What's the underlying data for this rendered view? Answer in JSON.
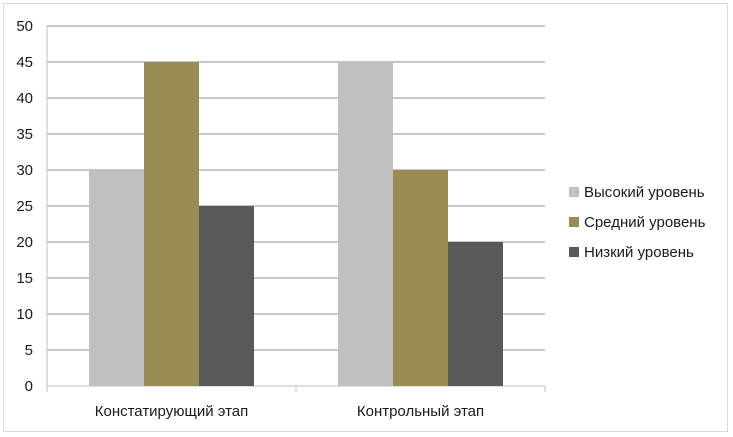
{
  "chart_data": {
    "type": "bar",
    "title": "",
    "xlabel": "",
    "ylabel": "",
    "categories": [
      "Констатирующий этап",
      "Контрольный этап"
    ],
    "series": [
      {
        "name": "Высокий уровень",
        "values": [
          30,
          45
        ],
        "color": "#c0c0c0"
      },
      {
        "name": "Средний уровень",
        "values": [
          45,
          30
        ],
        "color": "#9b8b55"
      },
      {
        "name": "Низкий уровень",
        "values": [
          25,
          20
        ],
        "color": "#595959"
      }
    ],
    "ylim": [
      0,
      50
    ],
    "yticks": [
      "0",
      "5",
      "10",
      "15",
      "20",
      "25",
      "30",
      "35",
      "40",
      "45",
      "50"
    ],
    "grid": true,
    "legend_position": "right"
  }
}
